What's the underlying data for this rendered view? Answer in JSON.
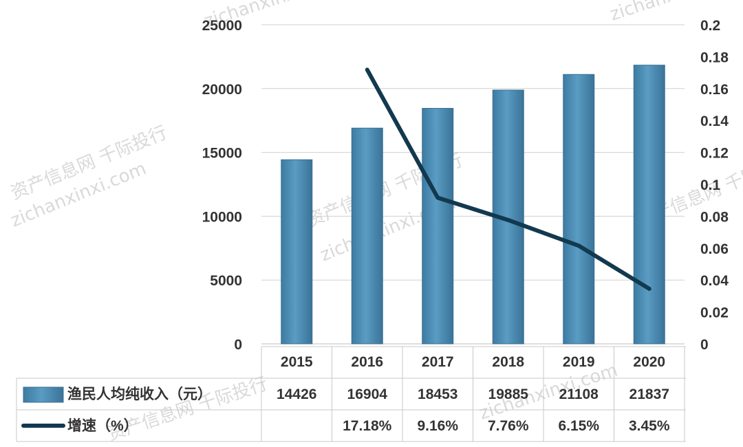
{
  "chart_data": {
    "type": "bar",
    "categories": [
      "2015",
      "2016",
      "2017",
      "2018",
      "2019",
      "2020"
    ],
    "series": [
      {
        "name": "渔民人均纯收入（元）",
        "type": "bar",
        "axis": "left",
        "color": "#4f8db3",
        "values": [
          14426,
          16904,
          18453,
          19885,
          21108,
          21837
        ],
        "labels": [
          "14426",
          "16904",
          "18453",
          "19885",
          "21108",
          "21837"
        ]
      },
      {
        "name": "增速（%）",
        "type": "line",
        "axis": "right",
        "color": "#12394f",
        "values": [
          null,
          0.1718,
          0.0916,
          0.0776,
          0.0615,
          0.0345
        ],
        "labels": [
          "",
          "17.18%",
          "9.16%",
          "7.76%",
          "6.15%",
          "3.45%"
        ]
      }
    ],
    "y_left": {
      "ylim": [
        0,
        25000
      ],
      "ticks": [
        "25000",
        "20000",
        "15000",
        "10000",
        "5000",
        "0"
      ]
    },
    "y_right": {
      "ylim": [
        0,
        0.2
      ],
      "ticks": [
        "0.2",
        "0.18",
        "0.16",
        "0.14",
        "0.12",
        "0.1",
        "0.08",
        "0.06",
        "0.04",
        "0.02",
        "0"
      ]
    },
    "grid": true,
    "legend": "data-table"
  },
  "watermark_text": [
    "zichanxinxi.com",
    "资产信息网 千际投行"
  ]
}
